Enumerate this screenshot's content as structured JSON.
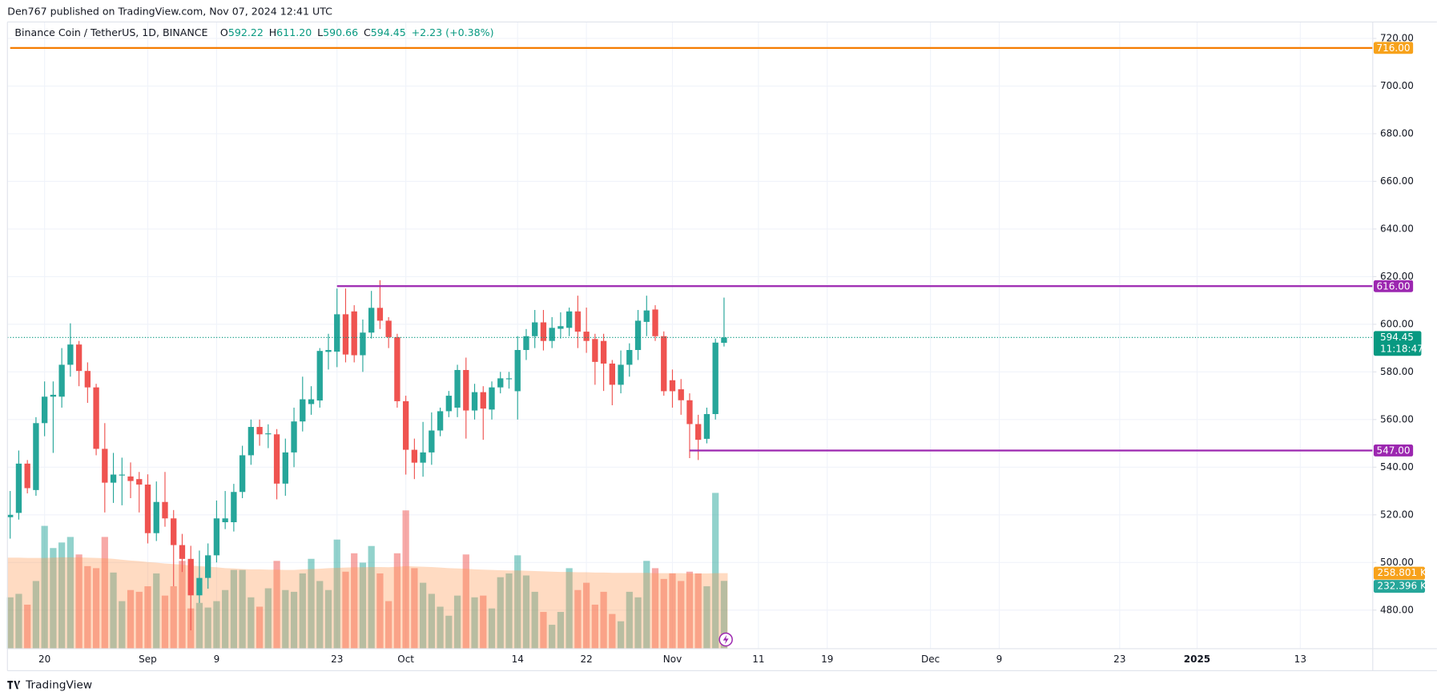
{
  "header": {
    "attribution": "Den767 published on TradingView.com, Nov 07, 2024 12:41 UTC",
    "symbol": "Binance Coin / TetherUS, 1D, BINANCE",
    "ohlc": [
      {
        "prefix": "O",
        "value": "592.22"
      },
      {
        "prefix": "H",
        "value": "611.20"
      },
      {
        "prefix": "L",
        "value": "590.66"
      },
      {
        "prefix": "C",
        "value": "594.45"
      }
    ],
    "change": "+2.23 (+0.38%)"
  },
  "chart_data": {
    "type": "candlestick",
    "x": [
      "2024-08-16",
      "2024-08-17",
      "2024-08-18",
      "2024-08-19",
      "2024-08-20",
      "2024-08-21",
      "2024-08-22",
      "2024-08-23",
      "2024-08-24",
      "2024-08-25",
      "2024-08-26",
      "2024-08-27",
      "2024-08-28",
      "2024-08-29",
      "2024-08-30",
      "2024-08-31",
      "2024-09-01",
      "2024-09-02",
      "2024-09-03",
      "2024-09-04",
      "2024-09-05",
      "2024-09-06",
      "2024-09-07",
      "2024-09-08",
      "2024-09-09",
      "2024-09-10",
      "2024-09-11",
      "2024-09-12",
      "2024-09-13",
      "2024-09-14",
      "2024-09-15",
      "2024-09-16",
      "2024-09-17",
      "2024-09-18",
      "2024-09-19",
      "2024-09-20",
      "2024-09-21",
      "2024-09-22",
      "2024-09-23",
      "2024-09-24",
      "2024-09-25",
      "2024-09-26",
      "2024-09-27",
      "2024-09-28",
      "2024-09-29",
      "2024-09-30",
      "2024-10-01",
      "2024-10-02",
      "2024-10-03",
      "2024-10-04",
      "2024-10-05",
      "2024-10-06",
      "2024-10-07",
      "2024-10-08",
      "2024-10-09",
      "2024-10-10",
      "2024-10-11",
      "2024-10-12",
      "2024-10-13",
      "2024-10-14",
      "2024-10-15",
      "2024-10-16",
      "2024-10-17",
      "2024-10-18",
      "2024-10-19",
      "2024-10-20",
      "2024-10-21",
      "2024-10-22",
      "2024-10-23",
      "2024-10-24",
      "2024-10-25",
      "2024-10-26",
      "2024-10-27",
      "2024-10-28",
      "2024-10-29",
      "2024-10-30",
      "2024-10-31",
      "2024-11-01",
      "2024-11-02",
      "2024-11-03",
      "2024-11-04",
      "2024-11-05",
      "2024-11-06",
      "2024-11-07"
    ],
    "open": [
      519,
      520.8,
      541.5,
      530.4,
      558.5,
      569.6,
      569.6,
      583,
      591.5,
      580.4,
      573.5,
      547.7,
      533.5,
      536.5,
      536.1,
      535,
      532.7,
      512.3,
      525.4,
      518.5,
      507.3,
      501.5,
      486.2,
      493.5,
      503,
      516.9,
      516.9,
      529.6,
      545,
      556.9,
      553.8,
      553.8,
      533.1,
      546.2,
      559.2,
      566.5,
      568,
      588.4,
      588.5,
      604.2,
      605.4,
      587,
      596.5,
      606.9,
      601.5,
      594.6,
      567.7,
      547.3,
      541.9,
      546.2,
      555.4,
      563.5,
      565,
      580.8,
      563.8,
      571.5,
      564.2,
      573.5,
      576.9,
      571.9,
      589.2,
      595,
      600.8,
      593,
      598.1,
      598.5,
      605.4,
      596.9,
      593.8,
      593,
      583.5,
      574.6,
      583,
      589.2,
      601,
      606.2,
      595,
      576.5,
      572.7,
      568.1,
      558.1,
      551.9,
      562.3,
      592.22
    ],
    "high": [
      530,
      547,
      543,
      561,
      576,
      576,
      590,
      600.4,
      593,
      584,
      575,
      558.5,
      546,
      544,
      542,
      538,
      537,
      534,
      538,
      522,
      512,
      507,
      505,
      508,
      526,
      530,
      533,
      549,
      560,
      560,
      558,
      556,
      552,
      565,
      578,
      574,
      590,
      596,
      615,
      615,
      608,
      602,
      614,
      618.5,
      603,
      596,
      570,
      552,
      559,
      563,
      565,
      572,
      583,
      586,
      575,
      574,
      576,
      580,
      580,
      595,
      598,
      606,
      606,
      603,
      605,
      607,
      612,
      607,
      596,
      596,
      585,
      589,
      592,
      606,
      612,
      608,
      597,
      581,
      577,
      571,
      562,
      565,
      594,
      611.2
    ],
    "low": [
      510,
      518,
      529,
      528,
      553,
      546,
      565,
      578,
      574,
      567,
      545,
      521,
      525,
      524,
      527,
      521,
      508,
      509,
      515,
      490,
      496,
      471.5,
      483,
      489,
      500,
      514,
      513,
      527,
      541,
      549,
      548,
      526.5,
      528,
      540,
      555,
      562,
      565,
      581,
      582,
      584,
      584,
      580,
      594,
      598,
      590,
      565,
      536.9,
      535,
      536,
      541,
      553,
      561,
      561,
      552,
      560,
      551.5,
      560,
      571,
      573,
      560,
      585,
      590,
      589,
      590,
      594,
      595,
      590,
      588,
      574.6,
      572,
      566,
      571,
      578,
      585,
      595,
      593,
      570,
      565,
      562,
      543.8,
      543,
      550,
      560,
      590.66
    ],
    "close": [
      520,
      541.5,
      531.2,
      558.5,
      569.6,
      570.4,
      583,
      591.5,
      580.4,
      573.5,
      547.7,
      533.5,
      536.9,
      536.9,
      534.2,
      532.7,
      512.3,
      525.4,
      518.5,
      507.3,
      501.5,
      486.2,
      493.5,
      503,
      518.5,
      518.5,
      529.6,
      545,
      556.9,
      553.8,
      554.2,
      533.1,
      546.2,
      559.2,
      568.5,
      568.5,
      588.8,
      589.2,
      604.2,
      587.3,
      587,
      596.5,
      606.9,
      601.5,
      594.6,
      567.7,
      547.3,
      541.9,
      546.2,
      555.4,
      563.5,
      570,
      580.8,
      563.8,
      571.5,
      564.6,
      573.5,
      577.3,
      577.3,
      589.2,
      595,
      600.8,
      593,
      598.5,
      599.2,
      605.4,
      596.9,
      593,
      584.2,
      583.5,
      574.6,
      583,
      589.2,
      601.5,
      605.8,
      595,
      571.9,
      571.9,
      568.1,
      558.1,
      551.5,
      562.3,
      592.3,
      594.45
    ],
    "up_color": "#26a69a",
    "down_color": "#ef5350",
    "ylim": [
      463.8,
      726.9
    ],
    "yticks": [
      {
        "value": 480,
        "label": "480.00"
      },
      {
        "value": 500,
        "label": "500.00"
      },
      {
        "value": 520,
        "label": "520.00"
      },
      {
        "value": 540,
        "label": "540.00"
      },
      {
        "value": 560,
        "label": "560.00"
      },
      {
        "value": 580,
        "label": "580.00"
      },
      {
        "value": 600,
        "label": "600.00"
      },
      {
        "value": 620,
        "label": "620.00"
      },
      {
        "value": 640,
        "label": "640.00"
      },
      {
        "value": 660,
        "label": "660.00"
      },
      {
        "value": 680,
        "label": "680.00"
      },
      {
        "value": 700,
        "label": "700.00"
      },
      {
        "value": 720,
        "label": "720.00"
      }
    ],
    "xlim": [
      "2024-08-16",
      "2025-01-21"
    ],
    "xticks": [
      {
        "value": "2024-08-20",
        "label": "20"
      },
      {
        "value": "2024-09-01",
        "label": "Sep"
      },
      {
        "value": "2024-09-09",
        "label": "9"
      },
      {
        "value": "2024-09-23",
        "label": "23"
      },
      {
        "value": "2024-10-01",
        "label": "Oct"
      },
      {
        "value": "2024-10-14",
        "label": "14"
      },
      {
        "value": "2024-10-22",
        "label": "22"
      },
      {
        "value": "2024-11-01",
        "label": "Nov"
      },
      {
        "value": "2024-11-11",
        "label": "11"
      },
      {
        "value": "2024-11-19",
        "label": "19"
      },
      {
        "value": "2024-12-01",
        "label": "Dec"
      },
      {
        "value": "2024-12-09",
        "label": "9"
      },
      {
        "value": "2024-12-23",
        "label": "23"
      },
      {
        "value": "2025-01-01",
        "label": "2025"
      },
      {
        "value": "2025-01-13",
        "label": "13"
      }
    ],
    "grid": true,
    "volume": {
      "values": [
        176,
        188,
        151,
        232,
        421,
        345,
        364,
        383,
        323,
        283,
        276,
        383,
        261,
        163,
        201,
        195,
        214,
        258,
        182,
        214,
        301,
        138,
        157,
        141,
        163,
        201,
        270,
        270,
        176,
        144,
        207,
        301,
        201,
        195,
        258,
        308,
        232,
        201,
        374,
        264,
        327,
        295,
        352,
        258,
        163,
        327,
        474,
        276,
        226,
        188,
        144,
        113,
        182,
        323,
        176,
        182,
        138,
        245,
        258,
        320,
        251,
        195,
        126,
        82,
        126,
        276,
        201,
        226,
        151,
        195,
        119,
        94,
        195,
        176,
        301,
        276,
        239,
        258,
        232,
        264,
        258,
        214,
        534,
        232.396
      ],
      "value_labels": [
        null,
        null,
        null,
        null,
        null,
        null,
        null,
        null,
        null,
        null,
        null,
        null,
        null,
        null,
        null,
        null,
        null,
        null,
        null,
        null,
        null,
        null,
        null,
        null,
        null,
        null,
        null,
        null,
        null,
        null,
        null,
        null,
        null,
        null,
        null,
        null,
        null,
        null,
        null,
        null,
        null,
        null,
        null,
        null,
        null,
        null,
        null,
        null,
        null,
        null,
        null,
        null,
        null,
        null,
        null,
        null,
        null,
        null,
        null,
        null,
        null,
        null,
        null,
        null,
        null,
        null,
        null,
        null,
        null,
        null,
        null,
        null,
        null,
        null,
        null,
        null,
        null,
        null,
        null,
        null,
        null,
        null,
        null,
        "232.396 K"
      ],
      "up_color": "rgba(38,166,154,0.5)",
      "down_color": "rgba(239,83,80,0.5)",
      "label_color": "#26a69a"
    },
    "volume_ma": {
      "values": [
        312,
        312,
        311,
        311,
        311,
        312,
        313,
        313,
        313,
        312,
        311,
        310,
        308,
        305,
        302,
        300,
        297,
        295,
        292,
        290,
        288,
        285,
        283,
        281,
        279,
        276,
        275,
        273,
        272,
        272,
        271,
        271,
        270,
        270,
        272,
        273,
        274,
        276,
        277,
        278,
        279,
        279,
        280,
        280,
        279,
        281,
        283,
        282,
        281,
        280,
        278,
        276,
        275,
        274,
        272,
        271,
        270,
        269,
        268,
        268,
        267,
        266,
        265,
        264,
        263,
        263,
        262,
        262,
        261,
        261,
        260,
        260,
        260,
        260,
        260,
        259,
        259,
        259,
        259,
        258,
        258,
        258,
        259,
        258.801
      ],
      "value_labels": [
        null,
        null,
        null,
        null,
        null,
        null,
        null,
        null,
        null,
        null,
        null,
        null,
        null,
        null,
        null,
        null,
        null,
        null,
        null,
        null,
        null,
        null,
        null,
        null,
        null,
        null,
        null,
        null,
        null,
        null,
        null,
        null,
        null,
        null,
        null,
        null,
        null,
        null,
        null,
        null,
        null,
        null,
        null,
        null,
        null,
        null,
        null,
        null,
        null,
        null,
        null,
        null,
        null,
        null,
        null,
        null,
        null,
        null,
        null,
        null,
        null,
        null,
        null,
        null,
        null,
        null,
        null,
        null,
        null,
        null,
        null,
        null,
        null,
        null,
        null,
        null,
        null,
        null,
        null,
        null,
        null,
        null,
        null,
        "258.801 K"
      ],
      "color": "#ff9850"
    },
    "volume_ylim": [
      0,
      2148
    ],
    "levels": [
      {
        "value": 716,
        "label": "716.00",
        "color": "#f57c00",
        "label_color": "#f7a21b",
        "from": "2024-08-16"
      },
      {
        "value": 616,
        "label": "616.00",
        "color": "#9c27b0",
        "label_color": "#9c27b0",
        "from": "2024-09-23"
      },
      {
        "value": 547,
        "label": "547.00",
        "color": "#9c27b0",
        "label_color": "#9c27b0",
        "from": "2024-11-03"
      }
    ],
    "countdown": "11:18:47",
    "last_color": "#089981"
  },
  "footer": {
    "brand": "TradingView"
  }
}
